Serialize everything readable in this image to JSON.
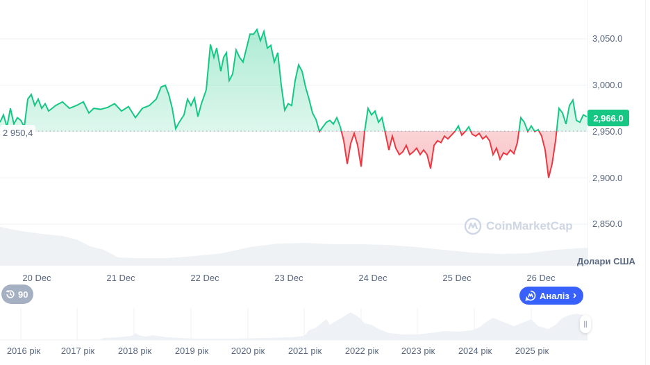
{
  "chart_data": {
    "type": "line",
    "title": "",
    "xlabel": "",
    "ylabel": "Долари США",
    "ylim": [
      2830,
      3080
    ],
    "grid": true,
    "baseline": 2950.4,
    "baseline_label": "2 950,4",
    "current_value": 2966.0,
    "current_label": "2,966.0",
    "y_ticks": [
      "3,050.0",
      "3,000.0",
      "2,950.0",
      "2,900.0",
      "2,850.0"
    ],
    "x_ticks": [
      "20 Dec",
      "21 Dec",
      "22 Dec",
      "23 Dec",
      "24 Dec",
      "25 Dec",
      "26 Dec"
    ],
    "colors": {
      "above": "#16c784",
      "below": "#ea3943",
      "volume": "#eff2f5"
    },
    "series": [
      {
        "name": "price",
        "points": [
          [
            0,
            2960
          ],
          [
            5,
            2968
          ],
          [
            10,
            2955
          ],
          [
            15,
            2975
          ],
          [
            20,
            2958
          ],
          [
            25,
            2965
          ],
          [
            30,
            2962
          ],
          [
            35,
            2955
          ],
          [
            40,
            2985
          ],
          [
            45,
            2990
          ],
          [
            50,
            2978
          ],
          [
            55,
            2985
          ],
          [
            60,
            2975
          ],
          [
            65,
            2980
          ],
          [
            70,
            2972
          ],
          [
            80,
            2978
          ],
          [
            90,
            2982
          ],
          [
            100,
            2975
          ],
          [
            110,
            2978
          ],
          [
            120,
            2982
          ],
          [
            128,
            2970
          ],
          [
            135,
            2975
          ],
          [
            145,
            2974
          ],
          [
            155,
            2976
          ],
          [
            165,
            2980
          ],
          [
            175,
            2972
          ],
          [
            185,
            2977
          ],
          [
            195,
            2965
          ],
          [
            205,
            2975
          ],
          [
            215,
            2978
          ],
          [
            225,
            2985
          ],
          [
            232,
            2998
          ],
          [
            238,
            3000
          ],
          [
            243,
            2990
          ],
          [
            248,
            2975
          ],
          [
            253,
            2953
          ],
          [
            258,
            2960
          ],
          [
            265,
            2968
          ],
          [
            270,
            2985
          ],
          [
            275,
            2978
          ],
          [
            280,
            2986
          ],
          [
            285,
            2966
          ],
          [
            290,
            2980
          ],
          [
            297,
            2995
          ],
          [
            303,
            3044
          ],
          [
            308,
            3030
          ],
          [
            312,
            3040
          ],
          [
            318,
            3015
          ],
          [
            322,
            3030
          ],
          [
            326,
            3035
          ],
          [
            330,
            3005
          ],
          [
            335,
            3012
          ],
          [
            340,
            3038
          ],
          [
            345,
            3030
          ],
          [
            350,
            3025
          ],
          [
            355,
            3040
          ],
          [
            360,
            3055
          ],
          [
            365,
            3055
          ],
          [
            370,
            3060
          ],
          [
            375,
            3048
          ],
          [
            380,
            3058
          ],
          [
            385,
            3040
          ],
          [
            390,
            3043
          ],
          [
            395,
            3025
          ],
          [
            400,
            3035
          ],
          [
            405,
            3000
          ],
          [
            410,
            2973
          ],
          [
            415,
            2980
          ],
          [
            420,
            2978
          ],
          [
            425,
            3005
          ],
          [
            430,
            3022
          ],
          [
            435,
            3015
          ],
          [
            440,
            2998
          ],
          [
            445,
            2985
          ],
          [
            450,
            2970
          ],
          [
            455,
            2963
          ],
          [
            460,
            2950
          ],
          [
            465,
            2955
          ],
          [
            470,
            2960
          ],
          [
            475,
            2962
          ],
          [
            480,
            2958
          ],
          [
            485,
            2965
          ],
          [
            490,
            2955
          ],
          [
            495,
            2940
          ],
          [
            500,
            2915
          ],
          [
            505,
            2937
          ],
          [
            510,
            2948
          ],
          [
            515,
            2935
          ],
          [
            520,
            2912
          ],
          [
            525,
            2950
          ],
          [
            530,
            2975
          ],
          [
            535,
            2968
          ],
          [
            540,
            2972
          ],
          [
            545,
            2960
          ],
          [
            550,
            2965
          ],
          [
            555,
            2948
          ],
          [
            560,
            2930
          ],
          [
            565,
            2945
          ],
          [
            570,
            2932
          ],
          [
            575,
            2925
          ],
          [
            580,
            2928
          ],
          [
            585,
            2935
          ],
          [
            590,
            2925
          ],
          [
            595,
            2928
          ],
          [
            600,
            2932
          ],
          [
            605,
            2925
          ],
          [
            610,
            2930
          ],
          [
            615,
            2925
          ],
          [
            620,
            2910
          ],
          [
            625,
            2935
          ],
          [
            630,
            2940
          ],
          [
            635,
            2938
          ],
          [
            640,
            2945
          ],
          [
            645,
            2942
          ],
          [
            650,
            2946
          ],
          [
            655,
            2950
          ],
          [
            660,
            2956
          ],
          [
            665,
            2946
          ],
          [
            670,
            2950
          ],
          [
            675,
            2955
          ],
          [
            680,
            2947
          ],
          [
            685,
            2945
          ],
          [
            690,
            2948
          ],
          [
            695,
            2942
          ],
          [
            700,
            2945
          ],
          [
            705,
            2940
          ],
          [
            710,
            2925
          ],
          [
            715,
            2932
          ],
          [
            720,
            2920
          ],
          [
            725,
            2927
          ],
          [
            730,
            2925
          ],
          [
            735,
            2930
          ],
          [
            740,
            2926
          ],
          [
            745,
            2938
          ],
          [
            750,
            2965
          ],
          [
            755,
            2960
          ],
          [
            760,
            2950
          ],
          [
            765,
            2956
          ],
          [
            770,
            2950
          ],
          [
            775,
            2952
          ],
          [
            780,
            2945
          ],
          [
            785,
            2930
          ],
          [
            790,
            2900
          ],
          [
            795,
            2915
          ],
          [
            800,
            2940
          ],
          [
            805,
            2975
          ],
          [
            810,
            2970
          ],
          [
            815,
            2958
          ],
          [
            820,
            2978
          ],
          [
            825,
            2984
          ],
          [
            830,
            2962
          ],
          [
            835,
            2960
          ],
          [
            840,
            2968
          ],
          [
            845,
            2966
          ]
        ]
      }
    ],
    "volume_area": [
      [
        0,
        327
      ],
      [
        30,
        333
      ],
      [
        60,
        337
      ],
      [
        90,
        340
      ],
      [
        110,
        345
      ],
      [
        130,
        355
      ],
      [
        150,
        360
      ],
      [
        170,
        371
      ],
      [
        200,
        372
      ],
      [
        240,
        372
      ],
      [
        280,
        369
      ],
      [
        320,
        365
      ],
      [
        360,
        356
      ],
      [
        400,
        351
      ],
      [
        440,
        350
      ],
      [
        480,
        352
      ],
      [
        520,
        352
      ],
      [
        560,
        353
      ],
      [
        600,
        356
      ],
      [
        640,
        360
      ],
      [
        680,
        364
      ],
      [
        720,
        366
      ],
      [
        760,
        365
      ],
      [
        800,
        360
      ],
      [
        846,
        357
      ]
    ],
    "navigator": {
      "x_ticks": [
        "2016 рік",
        "2017 рік",
        "2018 рік",
        "2019 рік",
        "2020 рік",
        "2021 рік",
        "2022 рік",
        "2023 рік",
        "2024 рік",
        "2025 рік"
      ],
      "handle_label": "||"
    }
  },
  "watermark": "CoinMarketCap",
  "range_badge": {
    "icon": "history-icon",
    "value": "90"
  },
  "analysis_button": {
    "icon": "cmc-ai-icon",
    "label": "Аналіз",
    "chevron": "›"
  }
}
